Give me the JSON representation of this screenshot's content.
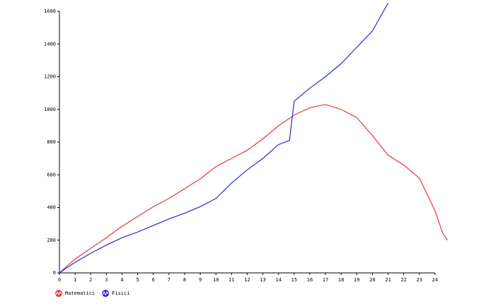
{
  "chart_data": {
    "type": "line",
    "xlim": [
      0,
      24
    ],
    "ylim": [
      0,
      1600
    ],
    "xticks": [
      0,
      1,
      2,
      3,
      4,
      5,
      6,
      7,
      8,
      9,
      10,
      11,
      12,
      13,
      14,
      15,
      16,
      17,
      18,
      19,
      20,
      21,
      22,
      23,
      24
    ],
    "yticks": [
      0,
      200,
      400,
      600,
      800,
      1000,
      1200,
      1400,
      1600
    ],
    "grid": false,
    "legend": "bottom-left",
    "series": [
      {
        "name": "Matematici",
        "color": "#e8353a",
        "x": [
          0,
          1,
          2,
          3,
          4,
          5,
          6,
          7,
          8,
          9,
          10,
          11,
          12,
          13,
          14,
          15,
          16,
          17,
          18,
          19,
          20,
          21,
          22,
          23,
          24,
          24.5,
          24.8
        ],
        "values": [
          0,
          85,
          150,
          215,
          285,
          345,
          405,
          455,
          515,
          575,
          650,
          700,
          750,
          820,
          900,
          965,
          1010,
          1030,
          1000,
          950,
          840,
          720,
          660,
          580,
          380,
          240,
          200
        ]
      },
      {
        "name": "Fisici",
        "color": "#2a2ad0",
        "x": [
          0,
          1,
          2,
          3,
          4,
          5,
          6,
          7,
          8,
          9,
          10,
          11,
          12,
          13,
          14,
          14.7,
          15,
          16,
          17,
          18,
          19,
          20,
          21
        ],
        "values": [
          0,
          65,
          120,
          170,
          215,
          250,
          290,
          330,
          365,
          405,
          455,
          550,
          630,
          700,
          785,
          810,
          1050,
          1130,
          1200,
          1280,
          1380,
          1480,
          1650
        ]
      }
    ]
  }
}
